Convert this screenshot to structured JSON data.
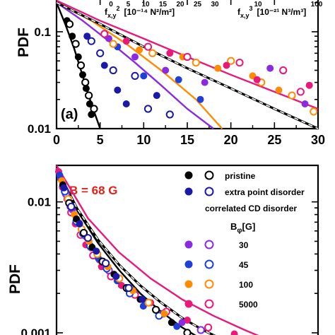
{
  "chart_data": [
    {
      "type": "scatter",
      "panel_label": "(a)",
      "ylabel": "PDF",
      "y_scale": "log",
      "ylim": [
        0.01,
        0.22
      ],
      "xlim": [
        0,
        30
      ],
      "x_ticks": [
        "0",
        "5",
        "10",
        "15",
        "20",
        "25",
        "30"
      ],
      "y_ticks": [
        "0.1",
        "0.01"
      ],
      "top_axis_labels": {
        "f2_label": "f",
        "f2_sub": "x,y",
        "f2_sup": "2",
        "f2_units": "[10⁻¹⁴ N²/m²]",
        "f2_ticks": [
          "0",
          "5",
          "10",
          "15",
          "20",
          "25",
          "30"
        ],
        "f3_label": "f",
        "f3_sub": "x,y",
        "f3_sup": "3",
        "f3_units": "[10⁻²¹ N³/m³]",
        "f3_ticks": [
          "10",
          "100"
        ]
      },
      "series": [
        {
          "color": "#000000",
          "marker": "filled",
          "x": [
            1.2,
            1.8,
            2.5,
            3.0,
            3.4,
            3.8,
            4.0
          ],
          "y": [
            0.13,
            0.09,
            0.055,
            0.036,
            0.026,
            0.018,
            0.014
          ]
        },
        {
          "color": "#000000",
          "marker": "open",
          "x": [
            1.5,
            2.2,
            2.8,
            3.3,
            3.7,
            4.3
          ],
          "y": [
            0.12,
            0.075,
            0.045,
            0.03,
            0.022,
            0.016
          ]
        },
        {
          "color": "#1a1aa6",
          "marker": "filled",
          "x": [
            3.5,
            5.5,
            7.0,
            8.0,
            11.5
          ],
          "y": [
            0.09,
            0.045,
            0.025,
            0.018,
            0.022
          ]
        },
        {
          "color": "#1a1aa6",
          "marker": "open",
          "x": [
            4.0,
            5.0,
            6.5,
            9.0,
            10.5,
            13.0
          ],
          "y": [
            0.08,
            0.06,
            0.04,
            0.035,
            0.016,
            0.014
          ]
        },
        {
          "color": "#8a2be2",
          "marker": "filled",
          "x": [
            6.0,
            9.0,
            12.5,
            17.0,
            24.5,
            28.5
          ],
          "y": [
            0.085,
            0.055,
            0.04,
            0.03,
            0.042,
            0.018
          ]
        },
        {
          "color": "#1f3fd6",
          "marker": "filled",
          "x": [
            7.0,
            10.0,
            14.0,
            16.5
          ],
          "y": [
            0.07,
            0.035,
            0.032,
            0.02
          ]
        },
        {
          "color": "#ff8c00",
          "marker": "filled",
          "x": [
            9.5,
            14.5,
            18.5,
            22.5,
            25.5
          ],
          "y": [
            0.065,
            0.055,
            0.042,
            0.035,
            0.025
          ]
        },
        {
          "color": "#ff8c00",
          "marker": "open",
          "x": [
            6.5,
            11.0,
            16.0,
            20.0,
            23.5,
            27.0,
            29.5
          ],
          "y": [
            0.075,
            0.06,
            0.048,
            0.05,
            0.03,
            0.022,
            0.015
          ]
        },
        {
          "color": "#e8197a",
          "marker": "filled",
          "x": [
            8.0,
            13.0,
            19.5,
            23.0,
            29.0
          ],
          "y": [
            0.08,
            0.06,
            0.045,
            0.032,
            0.028
          ]
        },
        {
          "color": "#e8197a",
          "marker": "open",
          "x": [
            5.5,
            10.5,
            15.0,
            21.0,
            26.0,
            28.0
          ],
          "y": [
            0.095,
            0.07,
            0.055,
            0.048,
            0.04,
            0.024
          ]
        }
      ],
      "fits": [
        {
          "color": "#000000",
          "style": "solid",
          "x": [
            0,
            1,
            2,
            3,
            4,
            5
          ],
          "y": [
            0.2,
            0.12,
            0.068,
            0.035,
            0.018,
            0.0095
          ]
        },
        {
          "color": "#8a2be2",
          "style": "solid",
          "x": [
            0,
            3,
            6,
            9,
            12,
            15,
            18
          ],
          "y": [
            0.2,
            0.13,
            0.08,
            0.048,
            0.028,
            0.016,
            0.009
          ]
        },
        {
          "color": "#ff8c00",
          "style": "solid",
          "x": [
            0,
            4,
            8,
            12,
            16,
            19
          ],
          "y": [
            0.2,
            0.13,
            0.075,
            0.04,
            0.02,
            0.0098
          ]
        },
        {
          "color": "#000000",
          "style": "dashed",
          "x": [
            0,
            5,
            10,
            15,
            20,
            25,
            30
          ],
          "y": [
            0.2,
            0.12,
            0.07,
            0.042,
            0.026,
            0.016,
            0.01
          ]
        },
        {
          "color": "#e8197a",
          "style": "solid",
          "x": [
            0,
            5,
            10,
            15,
            20,
            25,
            30
          ],
          "y": [
            0.21,
            0.13,
            0.085,
            0.055,
            0.036,
            0.024,
            0.016
          ]
        }
      ]
    },
    {
      "type": "scatter",
      "title": "B = 68 G",
      "ylabel": "PDF",
      "y_scale": "log",
      "ylim": [
        0.00085,
        0.019
      ],
      "y_ticks": [
        "0.01",
        "0.001"
      ],
      "legend": {
        "pristine": "pristine",
        "extra_point": "extra point disorder",
        "correlated": "correlated CD disorder",
        "b_phi_main": "B",
        "b_phi_sub": "φ",
        "b_phi_unit": "[G]",
        "values": [
          "30",
          "45",
          "100",
          "5000"
        ],
        "colors": [
          "#8a2be2",
          "#1f3fd6",
          "#ff8c00",
          "#e8197a"
        ]
      },
      "series": [
        {
          "color": "#e8197a",
          "marker": "mixed",
          "x": [
            0.2,
            0.6,
            1.0,
            1.4,
            1.8,
            2.3,
            2.8,
            3.5,
            4.3,
            5.2,
            6.2,
            7.5,
            9.0,
            10.5,
            12.5,
            14.5,
            17.0,
            19.0
          ],
          "y": [
            0.017,
            0.013,
            0.0105,
            0.0083,
            0.0068,
            0.0056,
            0.0047,
            0.0039,
            0.0032,
            0.0027,
            0.0023,
            0.00195,
            0.0017,
            0.00145,
            0.00125,
            0.0011,
            0.00098,
            0.0009
          ]
        },
        {
          "color": "#8a2be2",
          "marker": "mixed",
          "x": [
            0.4,
            0.9,
            1.5,
            2.1,
            2.7,
            3.3,
            4.1,
            5.0,
            6.0,
            7.2,
            8.6,
            10.2,
            12.0,
            13.8
          ],
          "y": [
            0.015,
            0.0115,
            0.0087,
            0.0069,
            0.0055,
            0.0045,
            0.0036,
            0.003,
            0.0026,
            0.0021,
            0.0017,
            0.0014,
            0.0012,
            0.00105
          ]
        },
        {
          "color": "#1f3fd6",
          "marker": "mixed",
          "x": [
            0.3,
            0.8,
            1.3,
            1.9,
            2.5,
            3.2,
            4.0,
            4.8,
            5.8,
            7.0,
            8.3,
            9.8,
            11.5
          ],
          "y": [
            0.016,
            0.012,
            0.0092,
            0.0071,
            0.0057,
            0.0046,
            0.0037,
            0.0031,
            0.0025,
            0.002,
            0.0016,
            0.00135,
            0.00112
          ]
        },
        {
          "color": "#ff8c00",
          "marker": "mixed",
          "x": [
            0.5,
            1.1,
            1.7,
            2.4,
            3.1,
            3.9,
            4.9,
            6.0,
            7.3,
            8.8,
            10.3
          ],
          "y": [
            0.0145,
            0.0105,
            0.008,
            0.0062,
            0.005,
            0.004,
            0.0032,
            0.0026,
            0.0021,
            0.0017,
            0.0014
          ]
        },
        {
          "color": "#000000",
          "marker": "mixed",
          "x": [
            0.6,
            1.2,
            1.9,
            2.6,
            3.4,
            4.4,
            5.5,
            6.7,
            8.0,
            9.5,
            11.0,
            12.5
          ],
          "y": [
            0.0135,
            0.0098,
            0.0074,
            0.0058,
            0.0045,
            0.0035,
            0.0028,
            0.0022,
            0.0018,
            0.0015,
            0.0012,
            0.001
          ]
        },
        {
          "color": "#1a1aa6",
          "marker": "mixed",
          "x": [
            0.7,
            1.4,
            2.2,
            3.0,
            3.8,
            4.7,
            5.7,
            6.9,
            8.2
          ],
          "y": [
            0.0128,
            0.0092,
            0.0068,
            0.0053,
            0.0042,
            0.0034,
            0.0027,
            0.0022,
            0.0018
          ]
        }
      ],
      "fits": [
        {
          "color": "#000000",
          "style": "solid",
          "x": [
            0,
            2,
            4,
            6,
            8,
            10,
            12,
            14
          ],
          "y": [
            0.018,
            0.0085,
            0.0048,
            0.003,
            0.002,
            0.00145,
            0.0011,
            0.00088
          ]
        },
        {
          "color": "#000000",
          "style": "dashed",
          "x": [
            0,
            2,
            4,
            6,
            8,
            10,
            12,
            14,
            16
          ],
          "y": [
            0.018,
            0.0088,
            0.0051,
            0.0033,
            0.0023,
            0.0017,
            0.0013,
            0.00105,
            0.00088
          ]
        },
        {
          "color": "#e8197a",
          "style": "solid",
          "x": [
            0,
            3,
            6,
            9,
            12,
            15,
            18,
            20
          ],
          "y": [
            0.019,
            0.0075,
            0.0041,
            0.0026,
            0.0018,
            0.00135,
            0.00105,
            0.0009
          ]
        }
      ]
    }
  ]
}
